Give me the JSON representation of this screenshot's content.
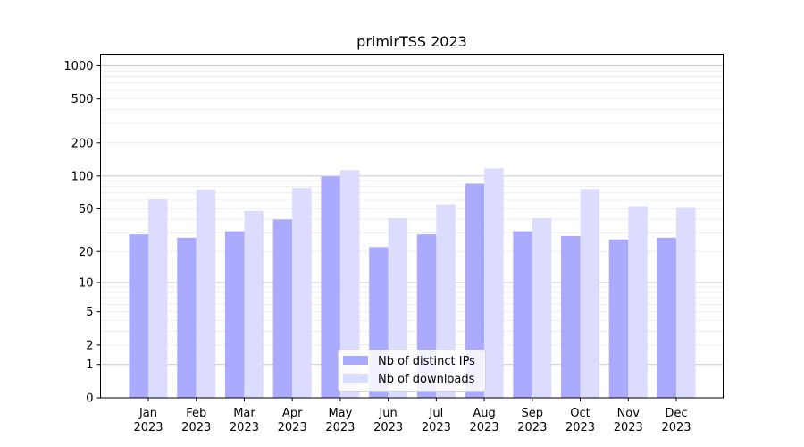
{
  "chart_data": {
    "type": "bar",
    "title": "primirTSS 2023",
    "xlabel": "",
    "ylabel": "",
    "y_scale": "log(1+y)",
    "ylim": [
      0,
      1273
    ],
    "y_ticks": [
      0,
      1,
      2,
      5,
      10,
      20,
      50,
      100,
      200,
      500,
      1000
    ],
    "grid": true,
    "legend_position": "bottom-center",
    "categories": [
      "Jan\n2023",
      "Feb\n2023",
      "Mar\n2023",
      "Apr\n2023",
      "May\n2023",
      "Jun\n2023",
      "Jul\n2023",
      "Aug\n2023",
      "Sep\n2023",
      "Oct\n2023",
      "Nov\n2023",
      "Dec\n2023"
    ],
    "series": [
      {
        "name": "Nb of distinct IPs",
        "color": "#aaaaff",
        "values": [
          29,
          27,
          31,
          40,
          99,
          22,
          29,
          85,
          31,
          28,
          26,
          27
        ]
      },
      {
        "name": "Nb of downloads",
        "color": "#dcdcff",
        "values": [
          61,
          75,
          48,
          78,
          113,
          41,
          55,
          117,
          41,
          76,
          53,
          51
        ]
      }
    ]
  }
}
